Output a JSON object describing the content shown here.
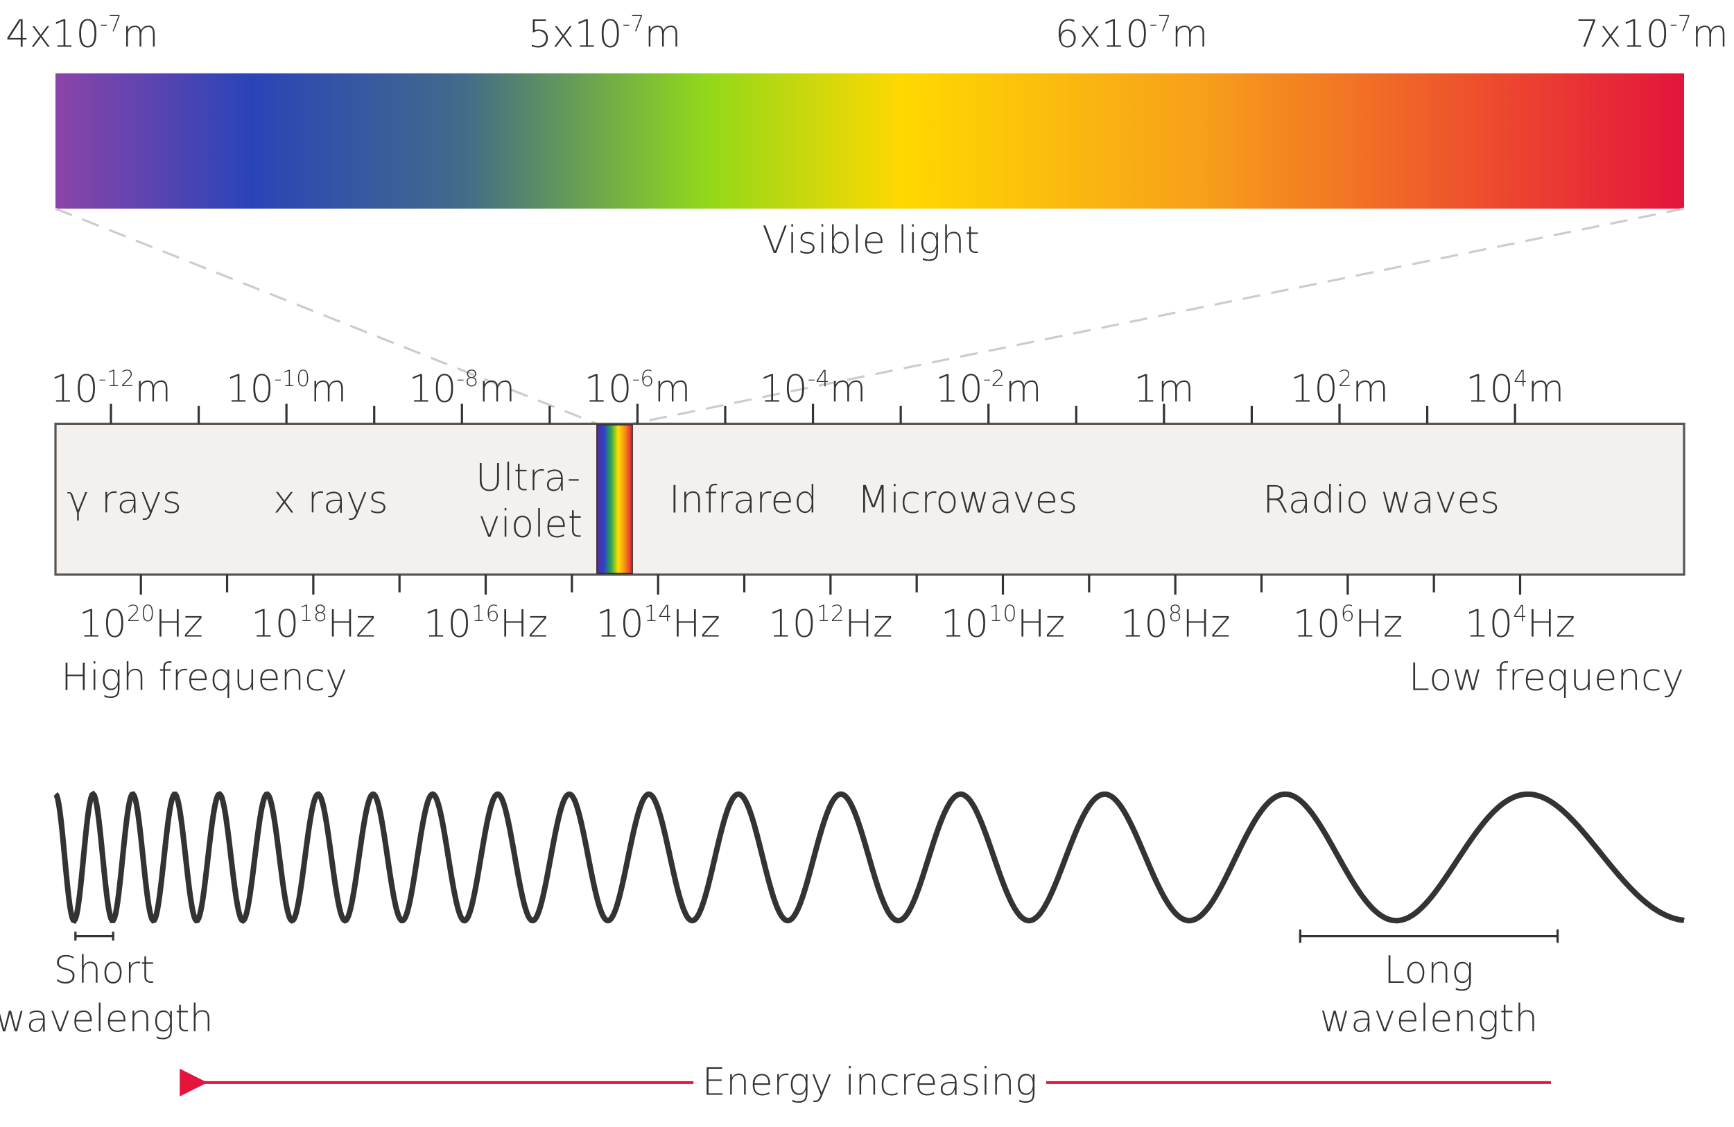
{
  "visible_light": {
    "title": "Visible light",
    "labels": [
      {
        "base": "4x10",
        "exp": "-7",
        "unit": "m"
      },
      {
        "base": "5x10",
        "exp": "-7",
        "unit": "m"
      },
      {
        "base": "6x10",
        "exp": "-7",
        "unit": "m"
      },
      {
        "base": "7x10",
        "exp": "-7",
        "unit": "m"
      }
    ]
  },
  "wavelength_scale": [
    {
      "base": "10",
      "exp": "-12",
      "unit": "m"
    },
    {
      "base": "10",
      "exp": "-10",
      "unit": "m"
    },
    {
      "base": "10",
      "exp": "-8",
      "unit": "m"
    },
    {
      "base": "10",
      "exp": "-6",
      "unit": "m"
    },
    {
      "base": "10",
      "exp": "-4",
      "unit": "m"
    },
    {
      "base": "10",
      "exp": "-2",
      "unit": "m"
    },
    {
      "base": "1m",
      "exp": "",
      "unit": ""
    },
    {
      "base": "10",
      "exp": "2",
      "unit": "m"
    },
    {
      "base": "10",
      "exp": "4",
      "unit": "m"
    }
  ],
  "frequency_scale": [
    {
      "base": "10",
      "exp": "20",
      "unit": "Hz"
    },
    {
      "base": "10",
      "exp": "18",
      "unit": "Hz"
    },
    {
      "base": "10",
      "exp": "16",
      "unit": "Hz"
    },
    {
      "base": "10",
      "exp": "14",
      "unit": "Hz"
    },
    {
      "base": "10",
      "exp": "12",
      "unit": "Hz"
    },
    {
      "base": "10",
      "exp": "10",
      "unit": "Hz"
    },
    {
      "base": "10",
      "exp": "8",
      "unit": "Hz"
    },
    {
      "base": "10",
      "exp": "6",
      "unit": "Hz"
    },
    {
      "base": "10",
      "exp": "4",
      "unit": "Hz"
    }
  ],
  "regions": {
    "gamma": "γ rays",
    "xray": "x rays",
    "ultraviolet": [
      "Ultra-",
      "violet"
    ],
    "infrared": "Infrared",
    "microwaves": "Microwaves",
    "radio": "Radio waves"
  },
  "high_frequency": "High frequency",
  "low_frequency": "Low frequency",
  "short_wavelength": [
    "Short",
    "wavelength"
  ],
  "long_wavelength": [
    "Long",
    "wavelength"
  ],
  "energy": "Energy increasing"
}
